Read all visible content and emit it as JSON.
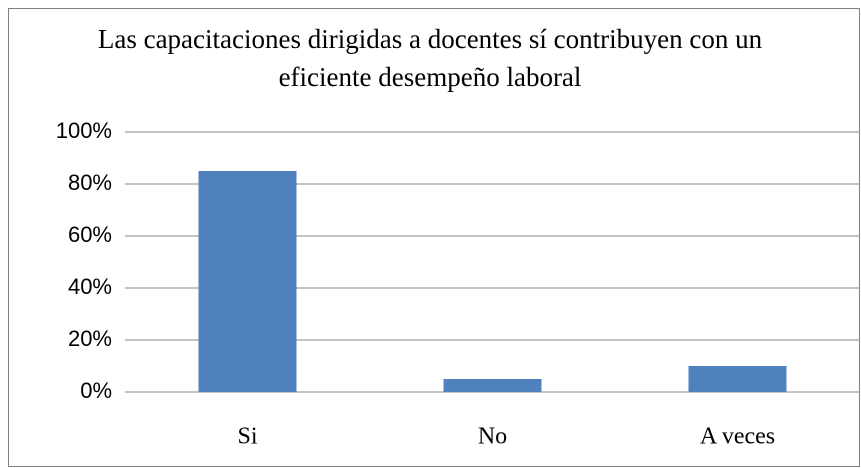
{
  "chart_data": {
    "type": "bar",
    "title": "Las capacitaciones dirigidas a docentes sí contribuyen con un eficiente desempeño laboral",
    "categories": [
      "Si",
      "No",
      "A veces"
    ],
    "values": [
      85,
      5,
      10
    ],
    "color": "#4f81bd",
    "ylim": [
      0,
      100
    ],
    "yticks": [
      {
        "value": 0,
        "label": "0%"
      },
      {
        "value": 20,
        "label": "20%"
      },
      {
        "value": 40,
        "label": "40%"
      },
      {
        "value": 60,
        "label": "60%"
      },
      {
        "value": 80,
        "label": "80%"
      },
      {
        "value": 100,
        "label": "100%"
      }
    ],
    "grid": true
  }
}
